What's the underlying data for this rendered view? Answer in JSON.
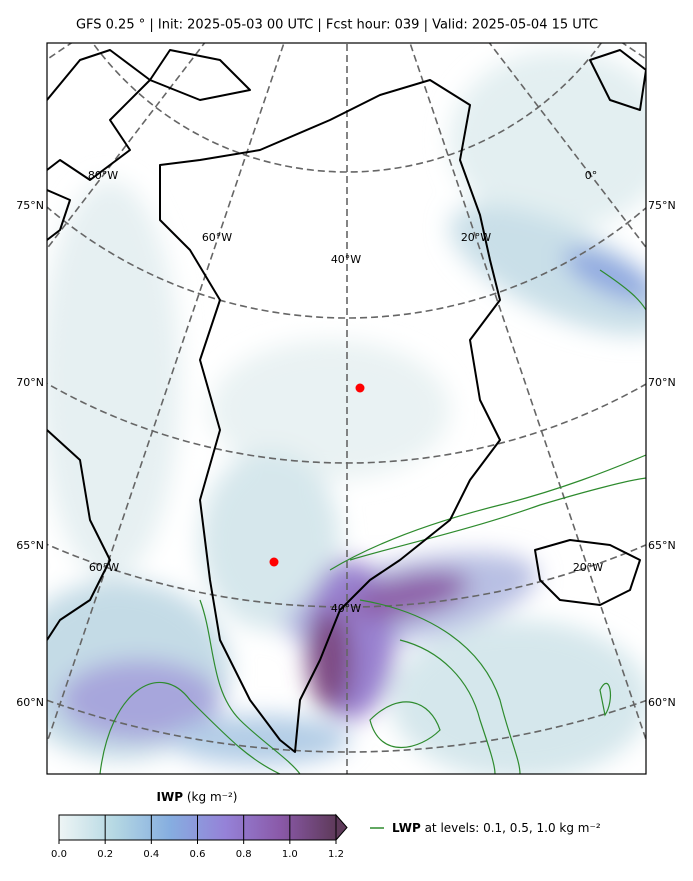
{
  "header": {
    "title": "GFS 0.25 °  |  Init: 2025-05-03 00 UTC  |  Fcst hour: 039  |  Valid: 2025-05-04 15 UTC"
  },
  "map": {
    "lat_labels": [
      "75°N",
      "70°N",
      "65°N",
      "60°N"
    ],
    "lon_labels": [
      "80°W",
      "60°W",
      "40°W",
      "20°W",
      "0°",
      "60°W",
      "40°W",
      "20°W"
    ]
  },
  "colorbar": {
    "label_bold": "IWP",
    "label_unit": "(kg m⁻²)",
    "lim": [
      0,
      1.2
    ],
    "ticks": [
      {
        "value": 0,
        "label": "0.0"
      },
      0.2,
      0.4,
      0.6,
      0.8,
      {
        "value": 1,
        "label": "1.0"
      },
      1.2
    ],
    "colors": [
      "#eef5f5",
      "#b5d8e3",
      "#86aee0",
      "#9582d8",
      "#8a59a8",
      "#5e3a5a"
    ]
  },
  "legend": {
    "name": "LWP",
    "text": "at levels: 0.1, 0.5, 1.0  kg m⁻²",
    "color": "#2e8b2e"
  }
}
